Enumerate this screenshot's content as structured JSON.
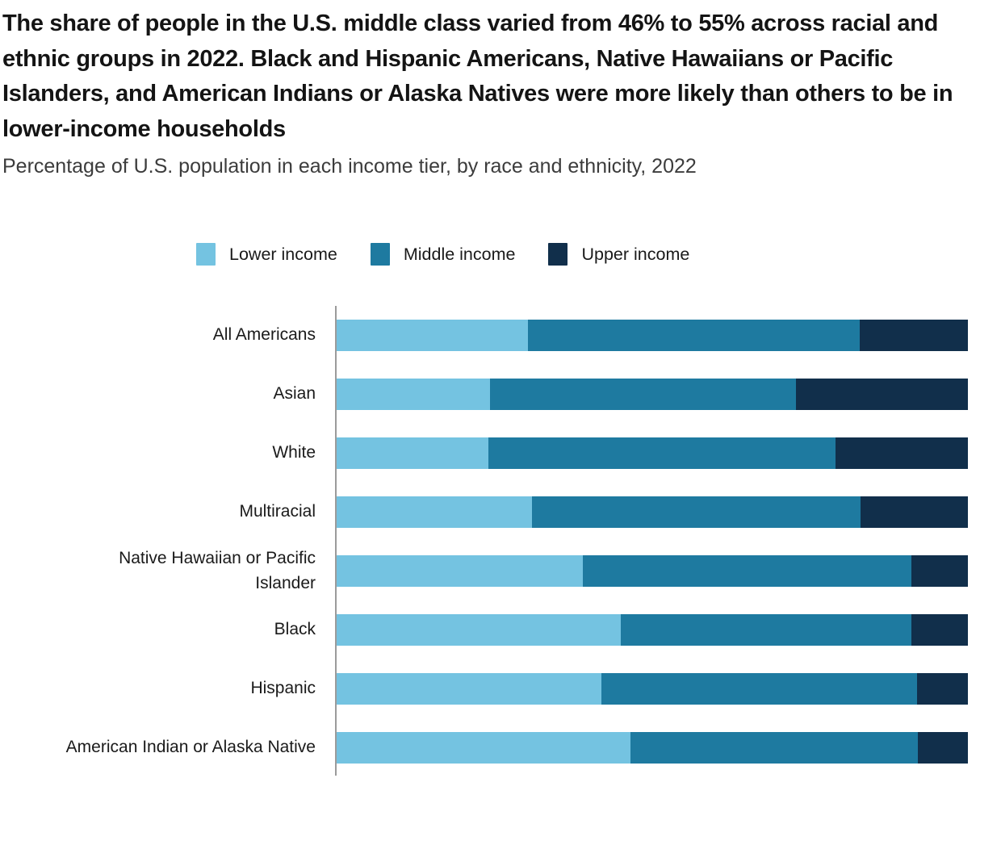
{
  "header": {
    "title": "The share of people in the U.S. middle class varied from 46% to 55% across racial and ethnic groups in 2022. Black and Hispanic Americans, Native Hawaiians or Pacific Islanders, and American Indians or Alaska Natives were more likely than others to be in lower-income households",
    "subtitle": "Percentage of U.S. population in each income tier, by race and ethnicity, 2022"
  },
  "colors": {
    "lower_income": "#74C3E1",
    "middle_income": "#1E7AA0",
    "upper_income": "#112F4B",
    "axis_line": "#9B9B9B",
    "title_text": "#141414",
    "subtitle_text": "#3C3C3C",
    "background": "#FFFFFF"
  },
  "legend": {
    "position": "top",
    "items": [
      {
        "label": "Lower income",
        "color": "#74C3E1"
      },
      {
        "label": "Middle income",
        "color": "#1E7AA0"
      },
      {
        "label": "Upper income",
        "color": "#112F4B"
      }
    ]
  },
  "chart_data": {
    "type": "bar",
    "orientation": "horizontal",
    "stacked": true,
    "unit": "percent",
    "xlim": [
      0,
      100
    ],
    "grid": false,
    "legend_position": "top",
    "title": "The share of people in the U.S. middle class varied from 46% to 55% across racial and ethnic groups in 2022. Black and Hispanic Americans, Native Hawaiians or Pacific Islanders, and American Indians or Alaska Natives were more likely than others to be in lower-income households",
    "subtitle": "Percentage of U.S. population in each income tier, by race and ethnicity, 2022",
    "categories": [
      "All Americans",
      "Asian",
      "White",
      "Multiracial",
      "Native Hawaiian or Pacific Islander",
      "Black",
      "Hispanic",
      "American Indian or Alaska Native"
    ],
    "categories_display": [
      "All Americans",
      "Asian",
      "White",
      "Multiracial",
      "Native Hawaiian or Pacific\nIslander",
      "Black",
      "Hispanic",
      "American Indian or Alaska Native"
    ],
    "series": [
      {
        "name": "Lower income",
        "color": "#74C3E1",
        "values": [
          30,
          24,
          24,
          31,
          39,
          45,
          42,
          47
        ]
      },
      {
        "name": "Middle income",
        "color": "#1E7AA0",
        "values": [
          52,
          48,
          55,
          52,
          52,
          46,
          50,
          46
        ]
      },
      {
        "name": "Upper income",
        "color": "#112F4B",
        "values": [
          17,
          27,
          21,
          17,
          9,
          9,
          8,
          8
        ]
      }
    ]
  }
}
